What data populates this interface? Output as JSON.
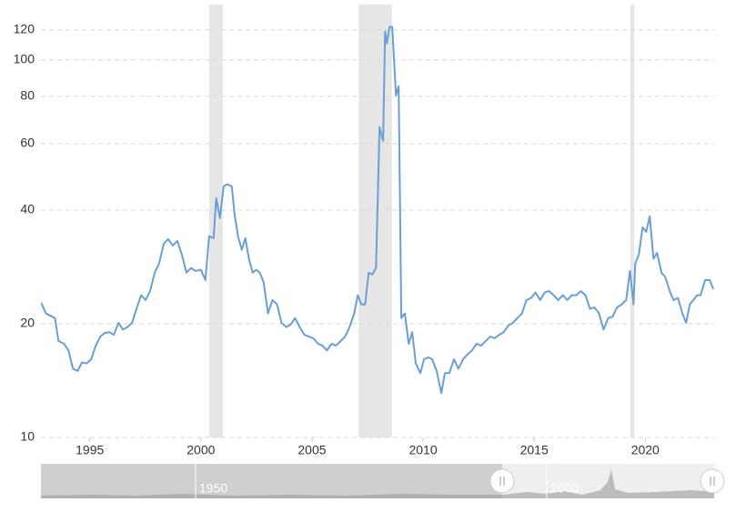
{
  "chart_data": {
    "type": "line",
    "log_scale": true,
    "grid": true,
    "xlim": [
      1992.8,
      2023.1
    ],
    "ylim": [
      10,
      140
    ],
    "xticks": [
      1995,
      2000,
      2005,
      2010,
      2015,
      2020
    ],
    "yticks": [
      10,
      20,
      40,
      60,
      80,
      100,
      120
    ],
    "shaded_ranges": [
      [
        2000.37,
        2000.98
      ],
      [
        2007.1,
        2008.6
      ],
      [
        2019.33,
        2019.5
      ]
    ],
    "shade_color": "#e6e6e6",
    "x": [
      1992.82,
      1993.02,
      1993.22,
      1993.43,
      1993.59,
      1993.84,
      1994.04,
      1994.24,
      1994.45,
      1994.65,
      1994.86,
      1995.06,
      1995.27,
      1995.47,
      1995.67,
      1995.88,
      1996.08,
      1996.29,
      1996.49,
      1996.69,
      1996.9,
      1997.1,
      1997.31,
      1997.51,
      1997.71,
      1997.92,
      1998.12,
      1998.33,
      1998.53,
      1998.73,
      1998.94,
      1999.14,
      1999.35,
      1999.55,
      1999.76,
      2000,
      2000.2,
      2000.37,
      2000.57,
      2000.69,
      2000.86,
      2001.02,
      2001.18,
      2001.39,
      2001.51,
      2001.67,
      2001.84,
      2002,
      2002.16,
      2002.33,
      2002.49,
      2002.65,
      2002.82,
      2003.02,
      2003.22,
      2003.43,
      2003.63,
      2003.84,
      2004.04,
      2004.24,
      2004.45,
      2004.65,
      2004.86,
      2005.06,
      2005.27,
      2005.47,
      2005.67,
      2005.88,
      2006.08,
      2006.29,
      2006.49,
      2006.69,
      2006.9,
      2007.06,
      2007.22,
      2007.39,
      2007.55,
      2007.71,
      2007.88,
      2008.04,
      2008.2,
      2008.29,
      2008.37,
      2008.49,
      2008.61,
      2008.78,
      2008.9,
      2009.02,
      2009.18,
      2009.35,
      2009.51,
      2009.67,
      2009.88,
      2010.04,
      2010.24,
      2010.41,
      2010.61,
      2010.82,
      2010.98,
      2011.18,
      2011.39,
      2011.59,
      2011.8,
      2012,
      2012.2,
      2012.41,
      2012.61,
      2012.82,
      2013.02,
      2013.22,
      2013.43,
      2013.63,
      2013.84,
      2014.04,
      2014.24,
      2014.45,
      2014.65,
      2014.86,
      2015.06,
      2015.27,
      2015.47,
      2015.67,
      2015.88,
      2016.08,
      2016.29,
      2016.49,
      2016.69,
      2016.9,
      2017.1,
      2017.31,
      2017.51,
      2017.71,
      2017.92,
      2018.12,
      2018.33,
      2018.53,
      2018.73,
      2018.94,
      2019.14,
      2019.31,
      2019.47,
      2019.55,
      2019.71,
      2019.88,
      2020.04,
      2020.2,
      2020.37,
      2020.53,
      2020.73,
      2020.9,
      2021.1,
      2021.27,
      2021.47,
      2021.67,
      2021.84,
      2022,
      2022.16,
      2022.33,
      2022.49,
      2022.69,
      2022.9,
      2023.06
    ],
    "series": [
      {
        "color": "#6a9fd6",
        "values": [
          22.7,
          21.3,
          21.0,
          20.7,
          18.0,
          17.7,
          17.0,
          15.2,
          15.0,
          15.8,
          15.7,
          16.1,
          17.5,
          18.5,
          18.9,
          19.0,
          18.7,
          20.1,
          19.3,
          19.6,
          20.1,
          21.9,
          23.8,
          23.1,
          24.4,
          27.3,
          28.9,
          32.6,
          33.5,
          32.2,
          33.1,
          30.5,
          27.3,
          28.1,
          27.6,
          27.8,
          26.1,
          34.1,
          33.7,
          43.0,
          38.1,
          46.2,
          46.8,
          46.2,
          39.2,
          34.1,
          31.4,
          33.7,
          29.7,
          27.3,
          27.8,
          27.3,
          25.8,
          21.3,
          23.1,
          22.5,
          20.1,
          19.6,
          19.9,
          20.7,
          19.6,
          18.7,
          18.5,
          18.3,
          17.7,
          17.5,
          17.0,
          17.7,
          17.5,
          18.0,
          18.5,
          19.6,
          21.3,
          23.8,
          22.5,
          22.5,
          27.3,
          27.0,
          28.1,
          66.3,
          61.0,
          118.8,
          110.5,
          122.1,
          122.1,
          80.5,
          85.1,
          20.7,
          21.3,
          17.7,
          19.0,
          15.7,
          14.8,
          16.1,
          16.3,
          16.1,
          15.0,
          13.1,
          14.8,
          14.8,
          16.1,
          15.2,
          16.1,
          16.6,
          17.0,
          17.7,
          17.5,
          18.0,
          18.5,
          18.3,
          18.7,
          19.0,
          19.8,
          20.1,
          20.7,
          21.3,
          23.1,
          23.4,
          24.2,
          23.1,
          24.2,
          24.4,
          23.8,
          23.1,
          23.8,
          23.1,
          23.8,
          23.8,
          24.4,
          23.8,
          21.9,
          22.1,
          21.3,
          19.3,
          20.7,
          20.9,
          22.1,
          22.5,
          23.1,
          27.6,
          22.5,
          28.9,
          30.5,
          36.0,
          35.0,
          38.5,
          29.7,
          30.8,
          27.3,
          26.6,
          24.4,
          23.1,
          23.4,
          21.3,
          20.1,
          22.5,
          23.1,
          23.8,
          23.8,
          26.1,
          26.1,
          24.7
        ]
      }
    ],
    "navigator": {
      "labels": [
        "1950",
        "2000"
      ]
    }
  }
}
